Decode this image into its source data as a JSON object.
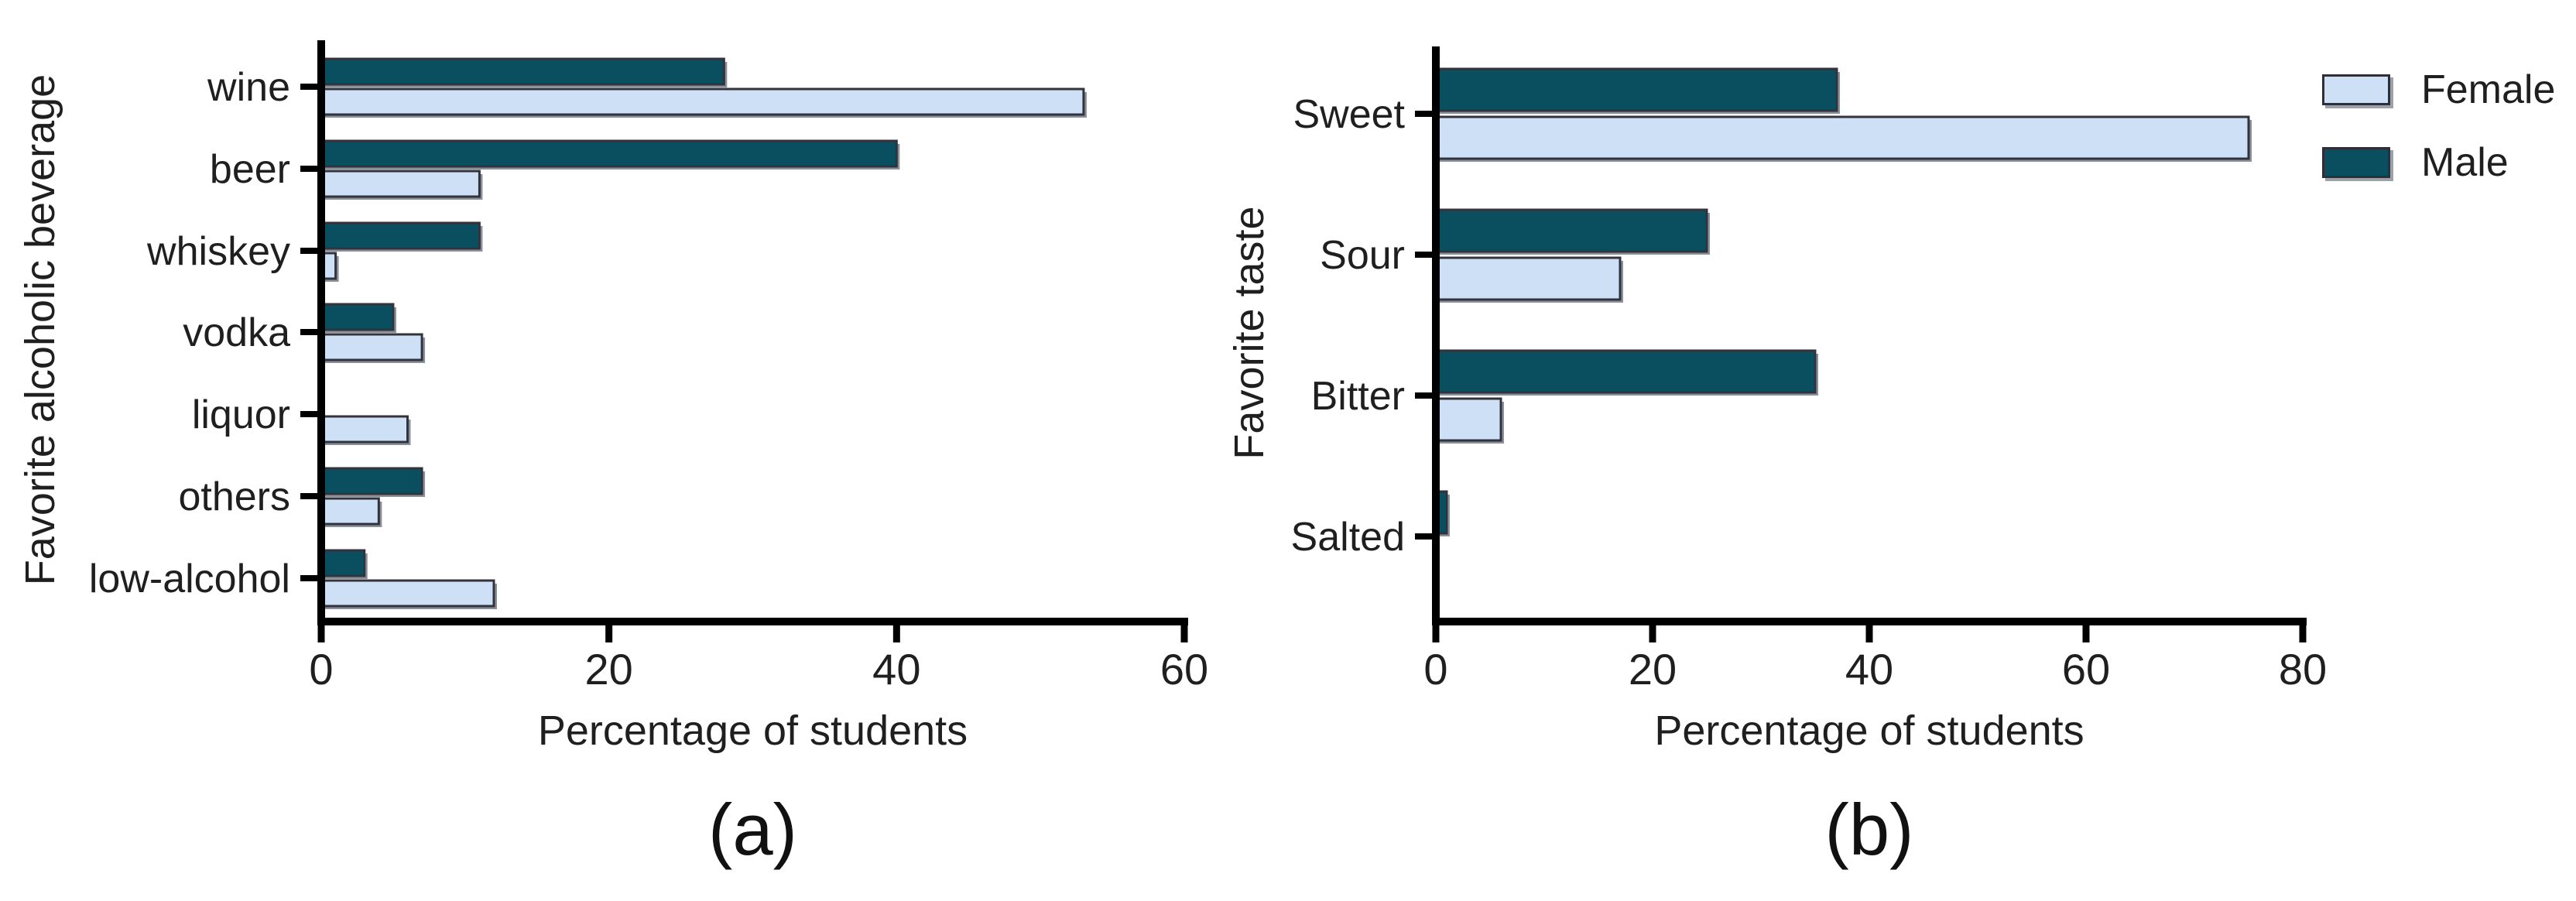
{
  "figure": {
    "background": "#ffffff"
  },
  "colors": {
    "male": "#0a4f5f",
    "female": "#cde0f6",
    "bar_outline": "#33333d",
    "bar_shadow": "#8a9097",
    "axis": "#000000",
    "text": "#1f1f1f"
  },
  "legend": {
    "items": [
      {
        "label": "Female",
        "series": "Female"
      },
      {
        "label": "Male",
        "series": "Male"
      }
    ]
  },
  "chart_data": [
    {
      "type": "bar",
      "orientation": "horizontal",
      "caption": "(a)",
      "xlabel": "Percentage of students",
      "ylabel": "Favorite alcoholic beverage",
      "xlim": [
        0,
        60
      ],
      "x_ticks": [
        0,
        20,
        40,
        60
      ],
      "grid": false,
      "legend_position": "none",
      "categories": [
        "wine",
        "beer",
        "whiskey",
        "vodka",
        "liquor",
        "others",
        "low-alcohol"
      ],
      "series": [
        {
          "name": "Male",
          "values": [
            28,
            40,
            11,
            5,
            0,
            7,
            3
          ]
        },
        {
          "name": "Female",
          "values": [
            53,
            11,
            1,
            7,
            6,
            4,
            12
          ]
        }
      ]
    },
    {
      "type": "bar",
      "orientation": "horizontal",
      "caption": "(b)",
      "xlabel": "Percentage of students",
      "ylabel": "Favorite taste",
      "xlim": [
        0,
        80
      ],
      "x_ticks": [
        0,
        20,
        40,
        60,
        80
      ],
      "grid": false,
      "legend_position": "top-right",
      "categories": [
        "Sweet",
        "Sour",
        "Bitter",
        "Salted"
      ],
      "series": [
        {
          "name": "Male",
          "values": [
            37,
            25,
            35,
            1
          ]
        },
        {
          "name": "Female",
          "values": [
            75,
            17,
            6,
            0
          ]
        }
      ]
    }
  ]
}
